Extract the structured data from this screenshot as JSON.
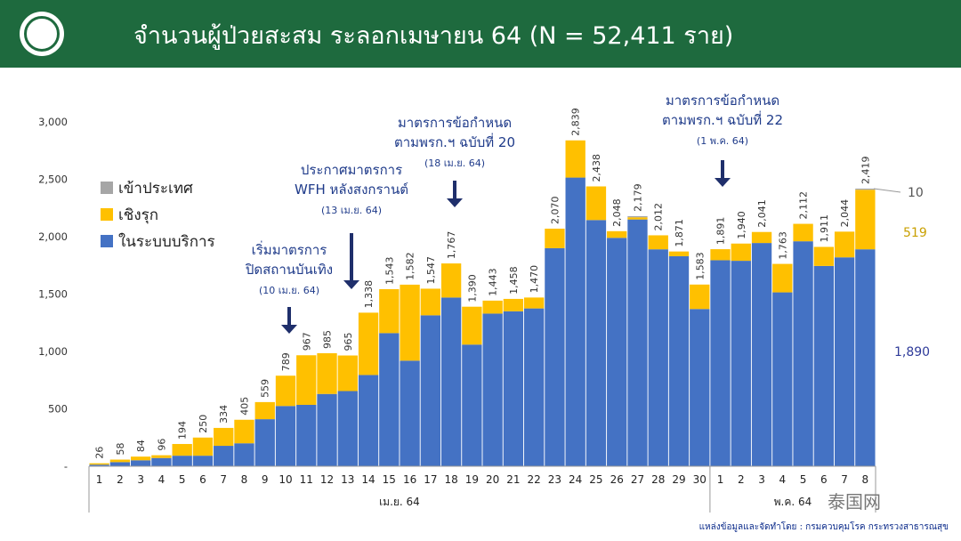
{
  "header": {
    "title": "จำนวนผู้ป่วยสะสม ระลอกเมษายน 64    (N = 52,411 ราย)"
  },
  "legend": [
    {
      "label": "เข้าประเทศ",
      "color": "#a6a6a6"
    },
    {
      "label": "เชิงรุก",
      "color": "#ffc000"
    },
    {
      "label": "ในระบบบริการ",
      "color": "#4472c4"
    }
  ],
  "annotations": [
    {
      "text": "เริ่มมาตรการ",
      "text2": "ปิดสถานบันเทิง",
      "date": "(10 เม.ย. 64)"
    },
    {
      "text": "ประกาศมาตรการ",
      "text2": "WFH หลังสงกรานต์",
      "date": "(13 เม.ย. 64)"
    },
    {
      "text": "มาตรการข้อกำหนด",
      "text2": "ตามพรก.ฯ ฉบับที่ 20",
      "date": "(18 เม.ย. 64)"
    },
    {
      "text": "มาตรการข้อกำหนด",
      "text2": "ตามพรก.ฯ ฉบับที่ 22",
      "date": "(1 พ.ค. 64)"
    }
  ],
  "last_bar_labels": {
    "arrived": "10",
    "active": "519",
    "system": "1,890"
  },
  "footer": "แหล่งข้อมูลและจัดทำโดย : กรมควบคุมโรค กระทรวงสาธารณสุข",
  "watermark": "泰国网",
  "chart_data": {
    "type": "bar",
    "stacked": true,
    "ylim": [
      0,
      3000
    ],
    "yticks": [
      "-",
      "500",
      "1,000",
      "1,500",
      "2,000",
      "2,500",
      "3,000"
    ],
    "categories": [
      "1",
      "2",
      "3",
      "4",
      "5",
      "6",
      "7",
      "8",
      "9",
      "10",
      "11",
      "12",
      "13",
      "14",
      "15",
      "16",
      "17",
      "18",
      "19",
      "20",
      "21",
      "22",
      "23",
      "24",
      "25",
      "26",
      "27",
      "28",
      "29",
      "30",
      "1",
      "2",
      "3",
      "4",
      "5",
      "6",
      "7",
      "8"
    ],
    "month_groups": [
      {
        "label": "เม.ย. 64",
        "count": 30
      },
      {
        "label": "พ.ค. 64",
        "count": 8
      }
    ],
    "totals": [
      26,
      58,
      84,
      96,
      194,
      250,
      334,
      405,
      559,
      789,
      967,
      985,
      965,
      1338,
      1543,
      1582,
      1547,
      1767,
      1390,
      1443,
      1458,
      1470,
      2070,
      2839,
      2438,
      2048,
      2179,
      2012,
      1871,
      1583,
      1891,
      1940,
      2041,
      1763,
      2112,
      1911,
      2044,
      2419
    ],
    "total_labels": [
      "26",
      "58",
      "84",
      "96",
      "194",
      "250",
      "334",
      "405",
      "559",
      "789",
      "967",
      "985",
      "965",
      "1,338",
      "1,543",
      "1,582",
      "1,547",
      "1,767",
      "1,390",
      "1,443",
      "1,458",
      "1,470",
      "2,070",
      "2,839",
      "2,438",
      "2,048",
      "2,179",
      "2,012",
      "1,871",
      "1,583",
      "1,891",
      "1,940",
      "2,041",
      "1,763",
      "2,112",
      "1,911",
      "2,044",
      "2,419"
    ],
    "series": [
      {
        "name": "ในระบบบริการ",
        "values": [
          14,
          36,
          52,
          72,
          92,
          92,
          178,
          200,
          410,
          525,
          535,
          630,
          655,
          795,
          1160,
          920,
          1315,
          1470,
          1060,
          1330,
          1350,
          1375,
          1900,
          2515,
          2145,
          1990,
          2150,
          1890,
          1830,
          1370,
          1795,
          1790,
          1945,
          1515,
          1960,
          1745,
          1820,
          1890
        ]
      },
      {
        "name": "เชิงรุก",
        "values": [
          12,
          22,
          32,
          24,
          102,
          158,
          156,
          205,
          149,
          264,
          432,
          355,
          310,
          543,
          383,
          662,
          232,
          297,
          330,
          113,
          108,
          95,
          170,
          324,
          293,
          58,
          19,
          122,
          41,
          213,
          96,
          150,
          96,
          248,
          152,
          166,
          224,
          519
        ]
      },
      {
        "name": "เข้าประเทศ",
        "values": [
          0,
          0,
          0,
          0,
          0,
          0,
          0,
          0,
          0,
          0,
          0,
          0,
          0,
          0,
          0,
          0,
          0,
          0,
          0,
          0,
          0,
          0,
          0,
          0,
          0,
          0,
          10,
          0,
          0,
          0,
          0,
          0,
          0,
          0,
          0,
          0,
          0,
          10
        ]
      }
    ]
  }
}
